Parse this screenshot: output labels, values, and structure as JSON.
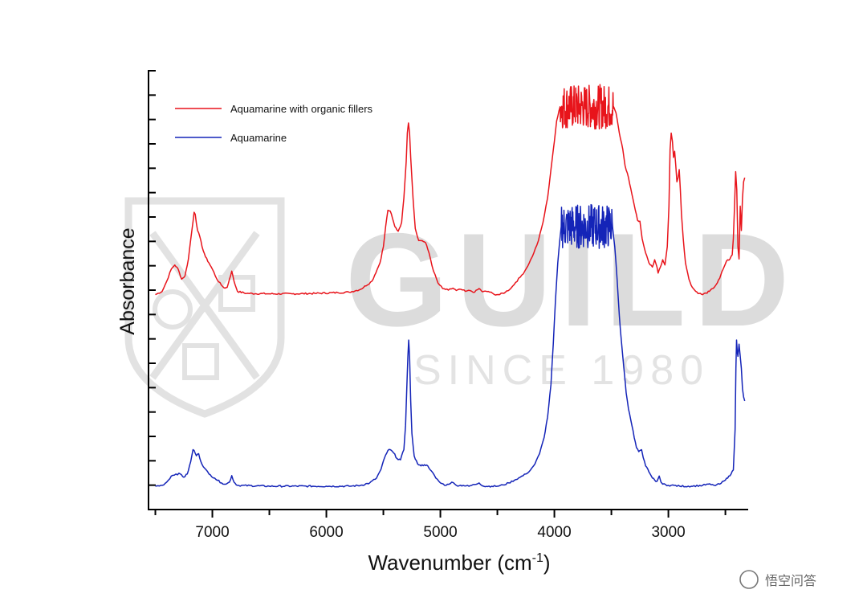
{
  "chart_data": {
    "type": "line",
    "xlabel": "Wavenumber (cm",
    "xlabel_sup": "-1",
    "xlabel_close": ")",
    "ylabel": "Absorbance",
    "xlim": [
      7560,
      2300
    ],
    "x_reversed": true,
    "ylim": [
      0,
      1
    ],
    "x_ticks": [
      7000,
      6000,
      5000,
      4000,
      3000
    ],
    "x_tick_labels": [
      "7000",
      "6000",
      "5000",
      "4000",
      "3000"
    ],
    "y_tick_labels_shown": false,
    "legend_position": "top-left",
    "series": [
      {
        "name": "Aquamarine with organic fillers",
        "color": "#e8141b",
        "noisy_region": [
          3950,
          3480
        ],
        "points": [
          [
            7500,
            0.482
          ],
          [
            7440,
            0.49
          ],
          [
            7400,
            0.515
          ],
          [
            7360,
            0.545
          ],
          [
            7330,
            0.555
          ],
          [
            7300,
            0.545
          ],
          [
            7270,
            0.52
          ],
          [
            7240,
            0.528
          ],
          [
            7210,
            0.57
          ],
          [
            7180,
            0.64
          ],
          [
            7160,
            0.685
          ],
          [
            7150,
            0.68
          ],
          [
            7130,
            0.64
          ],
          [
            7110,
            0.625
          ],
          [
            7090,
            0.6
          ],
          [
            7060,
            0.575
          ],
          [
            7030,
            0.56
          ],
          [
            7000,
            0.545
          ],
          [
            6960,
            0.52
          ],
          [
            6920,
            0.505
          ],
          [
            6890,
            0.498
          ],
          [
            6870,
            0.5
          ],
          [
            6850,
            0.52
          ],
          [
            6830,
            0.54
          ],
          [
            6810,
            0.515
          ],
          [
            6780,
            0.49
          ],
          [
            6700,
            0.485
          ],
          [
            6500,
            0.484
          ],
          [
            6300,
            0.484
          ],
          [
            6100,
            0.485
          ],
          [
            5900,
            0.487
          ],
          [
            5800,
            0.488
          ],
          [
            5700,
            0.495
          ],
          [
            5600,
            0.515
          ],
          [
            5530,
            0.56
          ],
          [
            5500,
            0.6
          ],
          [
            5480,
            0.65
          ],
          [
            5460,
            0.69
          ],
          [
            5440,
            0.688
          ],
          [
            5420,
            0.67
          ],
          [
            5400,
            0.65
          ],
          [
            5370,
            0.638
          ],
          [
            5340,
            0.66
          ],
          [
            5320,
            0.72
          ],
          [
            5300,
            0.81
          ],
          [
            5290,
            0.88
          ],
          [
            5280,
            0.905
          ],
          [
            5270,
            0.88
          ],
          [
            5260,
            0.82
          ],
          [
            5240,
            0.72
          ],
          [
            5220,
            0.645
          ],
          [
            5190,
            0.615
          ],
          [
            5160,
            0.615
          ],
          [
            5130,
            0.61
          ],
          [
            5100,
            0.585
          ],
          [
            5060,
            0.54
          ],
          [
            5020,
            0.51
          ],
          [
            4980,
            0.497
          ],
          [
            4930,
            0.493
          ],
          [
            4890,
            0.498
          ],
          [
            4860,
            0.492
          ],
          [
            4820,
            0.495
          ],
          [
            4780,
            0.49
          ],
          [
            4740,
            0.492
          ],
          [
            4700,
            0.488
          ],
          [
            4660,
            0.497
          ],
          [
            4630,
            0.489
          ],
          [
            4580,
            0.49
          ],
          [
            4530,
            0.483
          ],
          [
            4480,
            0.482
          ],
          [
            4430,
            0.488
          ],
          [
            4380,
            0.498
          ],
          [
            4340,
            0.512
          ],
          [
            4300,
            0.525
          ],
          [
            4260,
            0.54
          ],
          [
            4220,
            0.56
          ],
          [
            4180,
            0.585
          ],
          [
            4140,
            0.615
          ],
          [
            4100,
            0.66
          ],
          [
            4060,
            0.72
          ],
          [
            4030,
            0.79
          ],
          [
            4000,
            0.86
          ],
          [
            3980,
            0.91
          ],
          [
            3960,
            0.935
          ],
          [
            3950,
            0.945
          ],
          [
            3480,
            0.945
          ],
          [
            3460,
            0.93
          ],
          [
            3430,
            0.88
          ],
          [
            3400,
            0.84
          ],
          [
            3380,
            0.8
          ],
          [
            3350,
            0.77
          ],
          [
            3320,
            0.73
          ],
          [
            3290,
            0.69
          ],
          [
            3270,
            0.665
          ],
          [
            3250,
            0.663
          ],
          [
            3230,
            0.62
          ],
          [
            3200,
            0.585
          ],
          [
            3170,
            0.56
          ],
          [
            3140,
            0.55
          ],
          [
            3120,
            0.568
          ],
          [
            3100,
            0.55
          ],
          [
            3090,
            0.535
          ],
          [
            3070,
            0.55
          ],
          [
            3050,
            0.568
          ],
          [
            3030,
            0.555
          ],
          [
            3010,
            0.6
          ],
          [
            2995,
            0.7
          ],
          [
            2985,
            0.84
          ],
          [
            2975,
            0.88
          ],
          [
            2965,
            0.86
          ],
          [
            2955,
            0.82
          ],
          [
            2945,
            0.835
          ],
          [
            2935,
            0.8
          ],
          [
            2925,
            0.76
          ],
          [
            2915,
            0.77
          ],
          [
            2905,
            0.79
          ],
          [
            2895,
            0.74
          ],
          [
            2885,
            0.68
          ],
          [
            2870,
            0.62
          ],
          [
            2850,
            0.56
          ],
          [
            2820,
            0.52
          ],
          [
            2790,
            0.5
          ],
          [
            2760,
            0.49
          ],
          [
            2730,
            0.485
          ],
          [
            2700,
            0.482
          ],
          [
            2670,
            0.486
          ],
          [
            2640,
            0.49
          ],
          [
            2610,
            0.497
          ],
          [
            2580,
            0.507
          ],
          [
            2550,
            0.522
          ],
          [
            2520,
            0.545
          ],
          [
            2490,
            0.565
          ],
          [
            2460,
            0.57
          ],
          [
            2440,
            0.58
          ],
          [
            2430,
            0.62
          ],
          [
            2420,
            0.7
          ],
          [
            2410,
            0.785
          ],
          [
            2400,
            0.74
          ],
          [
            2390,
            0.6
          ],
          [
            2380,
            0.57
          ],
          [
            2370,
            0.7
          ],
          [
            2360,
            0.64
          ],
          [
            2350,
            0.72
          ],
          [
            2340,
            0.76
          ],
          [
            2330,
            0.77
          ]
        ]
      },
      {
        "name": "Aquamarine",
        "color": "#1424b8",
        "noisy_region": [
          3940,
          3490
        ],
        "points": [
          [
            7500,
            0.01
          ],
          [
            7440,
            0.012
          ],
          [
            7400,
            0.02
          ],
          [
            7360,
            0.035
          ],
          [
            7320,
            0.04
          ],
          [
            7280,
            0.04
          ],
          [
            7250,
            0.032
          ],
          [
            7220,
            0.04
          ],
          [
            7190,
            0.07
          ],
          [
            7170,
            0.1
          ],
          [
            7160,
            0.098
          ],
          [
            7140,
            0.085
          ],
          [
            7120,
            0.09
          ],
          [
            7100,
            0.07
          ],
          [
            7070,
            0.055
          ],
          [
            7030,
            0.04
          ],
          [
            6980,
            0.03
          ],
          [
            6920,
            0.018
          ],
          [
            6880,
            0.015
          ],
          [
            6850,
            0.02
          ],
          [
            6830,
            0.036
          ],
          [
            6810,
            0.02
          ],
          [
            6780,
            0.012
          ],
          [
            6500,
            0.01
          ],
          [
            6000,
            0.01
          ],
          [
            5800,
            0.01
          ],
          [
            5700,
            0.012
          ],
          [
            5620,
            0.018
          ],
          [
            5560,
            0.03
          ],
          [
            5520,
            0.052
          ],
          [
            5490,
            0.08
          ],
          [
            5460,
            0.098
          ],
          [
            5440,
            0.1
          ],
          [
            5410,
            0.092
          ],
          [
            5380,
            0.078
          ],
          [
            5350,
            0.075
          ],
          [
            5320,
            0.1
          ],
          [
            5305,
            0.16
          ],
          [
            5295,
            0.25
          ],
          [
            5285,
            0.33
          ],
          [
            5278,
            0.37
          ],
          [
            5270,
            0.33
          ],
          [
            5260,
            0.22
          ],
          [
            5250,
            0.14
          ],
          [
            5230,
            0.085
          ],
          [
            5200,
            0.065
          ],
          [
            5170,
            0.06
          ],
          [
            5140,
            0.063
          ],
          [
            5110,
            0.06
          ],
          [
            5080,
            0.048
          ],
          [
            5040,
            0.03
          ],
          [
            5000,
            0.018
          ],
          [
            4950,
            0.012
          ],
          [
            4900,
            0.02
          ],
          [
            4860,
            0.012
          ],
          [
            4800,
            0.012
          ],
          [
            4750,
            0.01
          ],
          [
            4700,
            0.014
          ],
          [
            4660,
            0.018
          ],
          [
            4620,
            0.01
          ],
          [
            4550,
            0.01
          ],
          [
            4500,
            0.01
          ],
          [
            4450,
            0.013
          ],
          [
            4400,
            0.018
          ],
          [
            4350,
            0.025
          ],
          [
            4300,
            0.032
          ],
          [
            4250,
            0.04
          ],
          [
            4210,
            0.05
          ],
          [
            4170,
            0.065
          ],
          [
            4130,
            0.09
          ],
          [
            4090,
            0.13
          ],
          [
            4060,
            0.18
          ],
          [
            4030,
            0.26
          ],
          [
            4010,
            0.36
          ],
          [
            3990,
            0.47
          ],
          [
            3970,
            0.56
          ],
          [
            3955,
            0.61
          ],
          [
            3940,
            0.65
          ],
          [
            3490,
            0.65
          ],
          [
            3470,
            0.6
          ],
          [
            3450,
            0.52
          ],
          [
            3430,
            0.43
          ],
          [
            3410,
            0.36
          ],
          [
            3390,
            0.3
          ],
          [
            3370,
            0.24
          ],
          [
            3350,
            0.2
          ],
          [
            3320,
            0.16
          ],
          [
            3300,
            0.13
          ],
          [
            3280,
            0.105
          ],
          [
            3260,
            0.095
          ],
          [
            3250,
            0.098
          ],
          [
            3235,
            0.1
          ],
          [
            3220,
            0.08
          ],
          [
            3200,
            0.06
          ],
          [
            3180,
            0.052
          ],
          [
            3160,
            0.04
          ],
          [
            3140,
            0.03
          ],
          [
            3120,
            0.025
          ],
          [
            3100,
            0.022
          ],
          [
            3080,
            0.035
          ],
          [
            3065,
            0.02
          ],
          [
            3050,
            0.015
          ],
          [
            3000,
            0.012
          ],
          [
            2950,
            0.012
          ],
          [
            2900,
            0.01
          ],
          [
            2800,
            0.01
          ],
          [
            2700,
            0.012
          ],
          [
            2650,
            0.015
          ],
          [
            2600,
            0.012
          ],
          [
            2550,
            0.015
          ],
          [
            2500,
            0.025
          ],
          [
            2470,
            0.035
          ],
          [
            2450,
            0.04
          ],
          [
            2430,
            0.05
          ],
          [
            2415,
            0.15
          ],
          [
            2408,
            0.3
          ],
          [
            2402,
            0.37
          ],
          [
            2396,
            0.34
          ],
          [
            2390,
            0.33
          ],
          [
            2380,
            0.36
          ],
          [
            2370,
            0.33
          ],
          [
            2360,
            0.3
          ],
          [
            2350,
            0.25
          ],
          [
            2340,
            0.23
          ],
          [
            2330,
            0.22
          ]
        ]
      }
    ]
  },
  "watermark": {
    "brand": "GUILD",
    "since": "SINCE 1980"
  },
  "credit": {
    "text": "悟空问答"
  }
}
